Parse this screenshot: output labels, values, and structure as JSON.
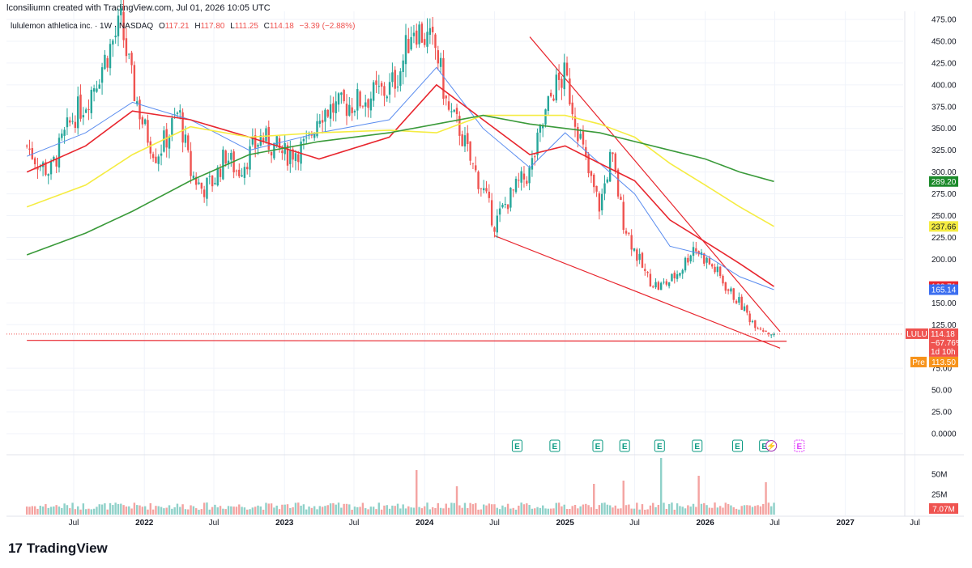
{
  "header": {
    "created_by": "lconsiliumn created with TradingView.com, Jul 01, 2026 10:05 UTC"
  },
  "legend": {
    "symbol": "lululemon athletica inc. · 1W · NASDAQ",
    "o_label": "O",
    "o_value": "117.21",
    "h_label": "H",
    "h_value": "117.80",
    "l_label": "L",
    "l_value": "111.25",
    "c_label": "C",
    "c_value": "114.18",
    "change": "−3.39 (−2.88%)"
  },
  "footer": {
    "brand": "TradingView",
    "logo_mark": "17"
  },
  "colors": {
    "up": "#26a69a",
    "down": "#ef5350",
    "ma_blue": "#5b8def",
    "ma_red": "#e8262e",
    "ma_yellow": "#f5ec42",
    "ma_green": "#3a9a3a",
    "trend": "#e8262e"
  },
  "chart_data": {
    "type": "candlestick",
    "ylim": [
      0,
      480
    ],
    "y_ticks": [
      475,
      450,
      425,
      400,
      375,
      350,
      325,
      300,
      275,
      250,
      225,
      200,
      150,
      125,
      75,
      50,
      25,
      0
    ],
    "y_tick_labels": [
      "475.00",
      "450.00",
      "425.00",
      "400.00",
      "375.00",
      "350.00",
      "325.00",
      "300.00",
      "275.00",
      "250.00",
      "225.00",
      "200.00",
      "150.00",
      "125.00",
      "75.00",
      "50.00",
      "25.00",
      "0.0000"
    ],
    "x_ticks": [
      {
        "label": "Jul",
        "date": "2021-07-01",
        "bold": false
      },
      {
        "label": "2022",
        "date": "2022-01-01",
        "bold": true
      },
      {
        "label": "Jul",
        "date": "2022-07-01",
        "bold": false
      },
      {
        "label": "2023",
        "date": "2023-01-01",
        "bold": true
      },
      {
        "label": "Jul",
        "date": "2023-07-01",
        "bold": false
      },
      {
        "label": "2024",
        "date": "2024-01-01",
        "bold": true
      },
      {
        "label": "Jul",
        "date": "2024-07-01",
        "bold": false
      },
      {
        "label": "2025",
        "date": "2025-01-01",
        "bold": true
      },
      {
        "label": "Jul",
        "date": "2025-07-01",
        "bold": false
      },
      {
        "label": "2026",
        "date": "2026-01-01",
        "bold": true
      },
      {
        "label": "Jul",
        "date": "2026-07-01",
        "bold": false
      },
      {
        "label": "2027",
        "date": "2027-01-01",
        "bold": true
      },
      {
        "label": "Jul",
        "date": "2027-07-01",
        "bold": false
      }
    ],
    "price_path": [
      [
        "2021-03-01",
        330
      ],
      [
        "2021-04-01",
        310
      ],
      [
        "2021-05-01",
        300
      ],
      [
        "2021-06-01",
        335
      ],
      [
        "2021-07-01",
        365
      ],
      [
        "2021-08-01",
        380
      ],
      [
        "2021-09-01",
        410
      ],
      [
        "2021-10-01",
        440
      ],
      [
        "2021-11-01",
        470
      ],
      [
        "2021-12-01",
        400
      ],
      [
        "2022-01-01",
        350
      ],
      [
        "2022-02-01",
        320
      ],
      [
        "2022-03-01",
        340
      ],
      [
        "2022-04-01",
        370
      ],
      [
        "2022-05-01",
        300
      ],
      [
        "2022-06-01",
        280
      ],
      [
        "2022-07-01",
        290
      ],
      [
        "2022-08-01",
        320
      ],
      [
        "2022-09-01",
        300
      ],
      [
        "2022-10-01",
        320
      ],
      [
        "2022-11-01",
        340
      ],
      [
        "2023-01-01",
        320
      ],
      [
        "2023-03-01",
        330
      ],
      [
        "2023-04-01",
        370
      ],
      [
        "2023-06-01",
        375
      ],
      [
        "2023-08-01",
        385
      ],
      [
        "2023-10-01",
        395
      ],
      [
        "2023-11-01",
        420
      ],
      [
        "2023-12-01",
        470
      ],
      [
        "2024-02-01",
        440
      ],
      [
        "2024-03-01",
        370
      ],
      [
        "2024-04-01",
        350
      ],
      [
        "2024-05-01",
        310
      ],
      [
        "2024-06-01",
        280
      ],
      [
        "2024-07-01",
        240
      ],
      [
        "2024-08-01",
        265
      ],
      [
        "2024-09-01",
        285
      ],
      [
        "2024-10-01",
        300
      ],
      [
        "2024-11-01",
        350
      ],
      [
        "2024-12-01",
        395
      ],
      [
        "2025-01-01",
        410
      ],
      [
        "2025-02-01",
        355
      ],
      [
        "2025-03-01",
        300
      ],
      [
        "2025-04-01",
        260
      ],
      [
        "2025-05-01",
        320
      ],
      [
        "2025-06-01",
        245
      ],
      [
        "2025-07-01",
        210
      ],
      [
        "2025-08-01",
        180
      ],
      [
        "2025-09-01",
        168
      ],
      [
        "2025-10-01",
        175
      ],
      [
        "2025-11-01",
        190
      ],
      [
        "2025-12-01",
        215
      ],
      [
        "2026-01-01",
        200
      ],
      [
        "2026-02-01",
        185
      ],
      [
        "2026-03-01",
        165
      ],
      [
        "2026-04-01",
        150
      ],
      [
        "2026-05-01",
        130
      ],
      [
        "2026-06-01",
        120
      ],
      [
        "2026-06-29",
        114
      ]
    ],
    "candles_start": "2021-03-01",
    "candles_end": "2026-06-29",
    "volume_spikes": [
      [
        "2023-12-11",
        55
      ],
      [
        "2024-03-25",
        35
      ],
      [
        "2025-03-17",
        38
      ],
      [
        "2025-06-02",
        42
      ],
      [
        "2025-09-08",
        70
      ],
      [
        "2025-12-15",
        48
      ],
      [
        "2026-06-08",
        40
      ]
    ],
    "volume_ticks": [
      {
        "label": "50M",
        "value": 50
      },
      {
        "label": "25M",
        "value": 25
      }
    ],
    "volume_max": 70,
    "ma_lines": [
      {
        "name": "ma_blue",
        "color": "#5b8def",
        "last": 165.14,
        "points": [
          [
            "2021-03-01",
            318
          ],
          [
            "2021-08-01",
            345
          ],
          [
            "2021-12-01",
            380
          ],
          [
            "2022-05-01",
            360
          ],
          [
            "2022-10-01",
            325
          ],
          [
            "2023-04-01",
            345
          ],
          [
            "2023-10-01",
            360
          ],
          [
            "2024-02-01",
            420
          ],
          [
            "2024-06-01",
            350
          ],
          [
            "2024-10-01",
            305
          ],
          [
            "2025-01-01",
            345
          ],
          [
            "2025-04-01",
            310
          ],
          [
            "2025-07-01",
            275
          ],
          [
            "2025-10-01",
            215
          ],
          [
            "2026-01-01",
            205
          ],
          [
            "2026-04-01",
            180
          ],
          [
            "2026-06-29",
            165.14
          ]
        ]
      },
      {
        "name": "ma_red",
        "color": "#e8262e",
        "last": 168.71,
        "points": [
          [
            "2021-03-01",
            300
          ],
          [
            "2021-08-01",
            330
          ],
          [
            "2021-12-01",
            370
          ],
          [
            "2022-05-01",
            360
          ],
          [
            "2022-10-01",
            340
          ],
          [
            "2023-04-01",
            315
          ],
          [
            "2023-10-01",
            340
          ],
          [
            "2024-02-01",
            400
          ],
          [
            "2024-06-01",
            360
          ],
          [
            "2024-10-01",
            320
          ],
          [
            "2025-01-01",
            330
          ],
          [
            "2025-04-01",
            310
          ],
          [
            "2025-07-01",
            290
          ],
          [
            "2025-10-01",
            245
          ],
          [
            "2026-01-01",
            220
          ],
          [
            "2026-04-01",
            195
          ],
          [
            "2026-06-29",
            168.71
          ]
        ]
      },
      {
        "name": "ma_yellow",
        "color": "#f5ec42",
        "last": 237.66,
        "points": [
          [
            "2021-03-01",
            260
          ],
          [
            "2021-08-01",
            285
          ],
          [
            "2021-12-01",
            320
          ],
          [
            "2022-05-01",
            352
          ],
          [
            "2022-10-01",
            340
          ],
          [
            "2023-04-01",
            345
          ],
          [
            "2023-10-01",
            348
          ],
          [
            "2024-02-01",
            345
          ],
          [
            "2024-06-01",
            365
          ],
          [
            "2024-10-01",
            365
          ],
          [
            "2025-01-01",
            365
          ],
          [
            "2025-04-01",
            355
          ],
          [
            "2025-07-01",
            340
          ],
          [
            "2025-10-01",
            310
          ],
          [
            "2026-01-01",
            285
          ],
          [
            "2026-04-01",
            260
          ],
          [
            "2026-06-29",
            237.66
          ]
        ]
      },
      {
        "name": "ma_green",
        "color": "#3a9a3a",
        "last": 289.2,
        "points": [
          [
            "2021-03-01",
            205
          ],
          [
            "2021-08-01",
            230
          ],
          [
            "2021-12-01",
            255
          ],
          [
            "2022-05-01",
            290
          ],
          [
            "2022-10-01",
            320
          ],
          [
            "2023-04-01",
            335
          ],
          [
            "2023-10-01",
            345
          ],
          [
            "2024-02-01",
            355
          ],
          [
            "2024-06-01",
            365
          ],
          [
            "2024-10-01",
            355
          ],
          [
            "2025-01-01",
            350
          ],
          [
            "2025-04-01",
            345
          ],
          [
            "2025-07-01",
            335
          ],
          [
            "2025-10-01",
            325
          ],
          [
            "2026-01-01",
            315
          ],
          [
            "2026-04-01",
            300
          ],
          [
            "2026-06-29",
            289.2
          ]
        ]
      }
    ],
    "trend_lines": [
      {
        "from": [
          "2024-10-01",
          455
        ],
        "to": [
          "2026-07-15",
          117
        ]
      },
      {
        "from": [
          "2024-07-01",
          227
        ],
        "to": [
          "2026-07-15",
          98
        ]
      },
      {
        "from": [
          "2021-03-01",
          107
        ],
        "to": [
          "2026-08-01",
          106
        ]
      }
    ],
    "dotted_price": 114.18,
    "earnings_dates": [
      "2024-08-29",
      "2024-12-05",
      "2025-03-27",
      "2025-06-05",
      "2025-09-04",
      "2025-12-11",
      "2026-03-26",
      "2026-06-04"
    ],
    "earnings_label": "E",
    "future_earnings_date": "2026-09-03",
    "lightning_date": "2026-06-22",
    "tags": [
      {
        "text": "289.20",
        "price": 289.2,
        "bg": "#1b8a2a",
        "fg": "#ffffff"
      },
      {
        "text": "237.66",
        "price": 237.66,
        "bg": "#f5ec42",
        "fg": "#131722"
      },
      {
        "text": "168.71",
        "price": 168.71,
        "bg": "#e8262e",
        "fg": "#ffffff"
      },
      {
        "text": "165.14",
        "price": 165.14,
        "bg": "#3b6ef0",
        "fg": "#ffffff"
      }
    ],
    "price_tag": {
      "symbol": "LULU",
      "price": "114.18",
      "change": "−67.76%",
      "countdown": "1d 10h"
    },
    "pre_tag": {
      "label": "Pre",
      "price": "113.50"
    },
    "volume_tag": "7.07M"
  }
}
